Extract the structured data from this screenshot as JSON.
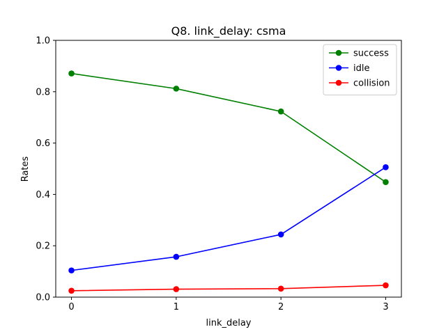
{
  "chart_data": {
    "type": "line",
    "title": "Q8. link_delay: csma",
    "xlabel": "link_delay",
    "ylabel": "Rates",
    "x": [
      0,
      1,
      2,
      3
    ],
    "xticks": [
      "0",
      "1",
      "2",
      "3"
    ],
    "yticks": [
      "0.0",
      "0.2",
      "0.4",
      "0.6",
      "0.8",
      "1.0"
    ],
    "ytick_values": [
      0.0,
      0.2,
      0.4,
      0.6,
      0.8,
      1.0
    ],
    "xlim": [
      -0.15,
      3.15
    ],
    "ylim": [
      0.0,
      1.0
    ],
    "grid": false,
    "legend_position": "top-right",
    "series": [
      {
        "name": "success",
        "color": "#008000",
        "values": [
          0.871,
          0.812,
          0.723,
          0.448
        ]
      },
      {
        "name": "idle",
        "color": "#0000ff",
        "values": [
          0.104,
          0.157,
          0.244,
          0.506
        ]
      },
      {
        "name": "collision",
        "color": "#ff0000",
        "values": [
          0.025,
          0.031,
          0.033,
          0.046
        ]
      }
    ]
  }
}
